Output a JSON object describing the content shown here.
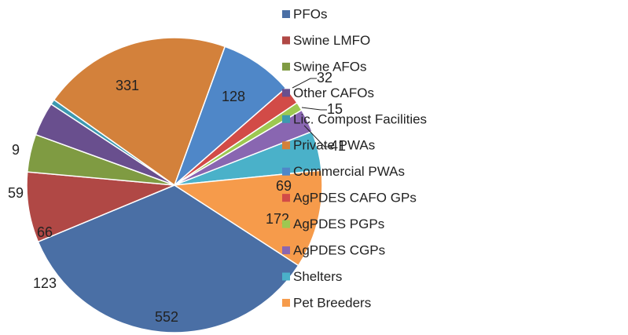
{
  "chart_data": {
    "type": "pie",
    "categories": [
      "PFOs",
      "Swine LMFO",
      "Swine AFOs",
      "Other CAFOs",
      "Lic. Compost Facilities",
      "Private PWAs",
      "Commercial PWAs",
      "AgPDES CAFO GPs",
      "AgPDES PGPs",
      "AgPDES CGPs",
      "Shelters",
      "Pet Breeders"
    ],
    "values": [
      552,
      123,
      66,
      59,
      9,
      331,
      128,
      32,
      15,
      41,
      69,
      172
    ],
    "colors": [
      "#4a6fa5",
      "#b04845",
      "#7f9b42",
      "#694f8e",
      "#3d99b0",
      "#d3813b",
      "#4f87c8",
      "#d24b47",
      "#9dc851",
      "#8966b1",
      "#4ab1c9",
      "#f69b4b"
    ],
    "legend": "right"
  }
}
